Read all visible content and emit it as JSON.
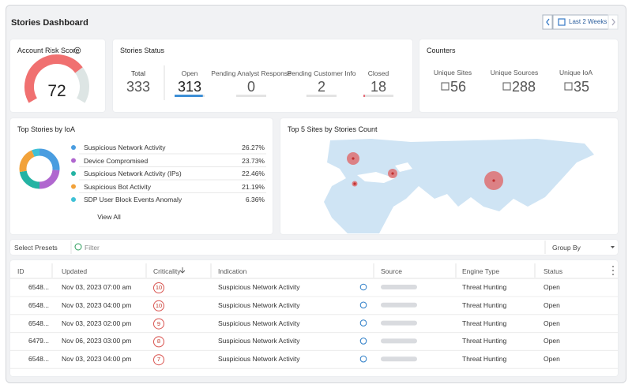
{
  "header": {
    "title": "Stories Dashboard",
    "date_range": "Last 2 Weeks"
  },
  "account_risk": {
    "title": "Account Risk Score",
    "value": 72,
    "range": [
      0,
      100
    ],
    "color": "#f07070",
    "track_color": "#dde5e4"
  },
  "stories_status": {
    "title": "Stories Status",
    "total": {
      "label": "Total",
      "value": 333
    },
    "statuses": [
      {
        "label": "Open",
        "value": 313,
        "color": "#3d8fd6"
      },
      {
        "label": "Pending Analyst Response",
        "value": 0,
        "color": "#c8c8c8"
      },
      {
        "label": "Pending Customer Info",
        "value": 2,
        "color": "#c8c8c8"
      },
      {
        "label": "Closed",
        "value": 18,
        "color": "#e5707a"
      }
    ]
  },
  "counters": {
    "title": "Counters",
    "items": [
      {
        "label": "Unique Sites",
        "value": 56
      },
      {
        "label": "Unique Sources",
        "value": 288
      },
      {
        "label": "Unique IoA",
        "value": 35
      }
    ]
  },
  "top_stories": {
    "title": "Top Stories by IoA",
    "link": "View All",
    "items": [
      {
        "name": "Suspicious Network Activity",
        "color": "#4a9de0",
        "value": 26.27,
        "value_label": "26.27%"
      },
      {
        "name": "Device Compromised",
        "color": "#b067cf",
        "value": 23.73,
        "value_label": "23.73%"
      },
      {
        "name": "Suspicious Network Activity (IPs)",
        "color": "#24b3a3",
        "value": 22.46,
        "value_label": "22.46%"
      },
      {
        "name": "Suspicious Bot Activity",
        "color": "#f2a23a",
        "value": 21.19,
        "value_label": "21.19%"
      },
      {
        "name": "SDP User Block Events Anomaly",
        "color": "#3fc1d6",
        "value": 6.36,
        "value_label": "6.36%"
      }
    ]
  },
  "top_sites": {
    "title": "Top 5 Sites by Stories Count"
  },
  "filter": {
    "presets": "Select Presets",
    "filter": "Filter",
    "group_by": "Group By"
  },
  "table": {
    "columns": [
      "ID",
      "Updated",
      "Criticality",
      "Indication",
      "Source",
      "Engine Type",
      "Status"
    ],
    "rows": [
      {
        "id": "6548...",
        "updated": "Nov 03, 2023 07:00 am",
        "criticality": 10,
        "indication": "Suspicious Network Activity",
        "engine": "Threat Hunting",
        "status": "Open"
      },
      {
        "id": "6548...",
        "updated": "Nov 03, 2023 04:00 pm",
        "criticality": 10,
        "indication": "Suspicious Network Activity",
        "engine": "Threat Hunting",
        "status": "Open"
      },
      {
        "id": "6548...",
        "updated": "Nov 03, 2023 02:00 pm",
        "criticality": 9,
        "indication": "Suspicious Network Activity",
        "engine": "Threat Hunting",
        "status": "Open"
      },
      {
        "id": "6479...",
        "updated": "Nov 06, 2023 03:00 pm",
        "criticality": 8,
        "indication": "Suspicious Network Activity",
        "engine": "Threat Hunting",
        "status": "Open"
      },
      {
        "id": "6548...",
        "updated": "Nov 03, 2023 04:00 pm",
        "criticality": 7,
        "indication": "Suspicious Network Activity",
        "engine": "Threat Hunting",
        "status": "Open"
      }
    ]
  }
}
